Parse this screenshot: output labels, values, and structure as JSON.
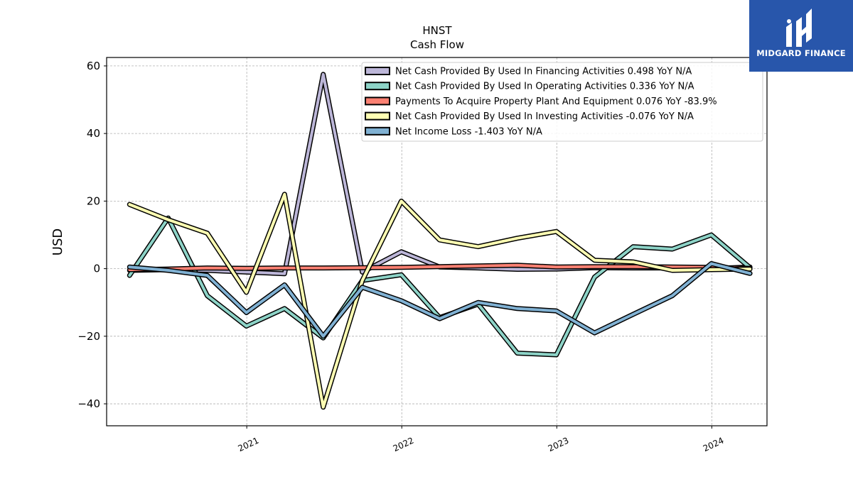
{
  "brand": {
    "name": "MIDGARD FINANCE",
    "color": "#2856ab"
  },
  "chart_data": {
    "type": "line",
    "title": "HNST",
    "subtitle": "Cash Flow",
    "xlabel": "",
    "ylabel": "USD",
    "ylim": [
      -46.5,
      62.5
    ],
    "yticks": [
      -40,
      -20,
      0,
      20,
      40,
      60
    ],
    "ytick_labels": [
      "−40",
      "−20",
      "0",
      "20",
      "40",
      "60"
    ],
    "xlim": [
      "2020-02-06",
      "2024-05-10"
    ],
    "xticks": [
      "2021-01-01",
      "2022-01-01",
      "2023-01-01",
      "2024-01-01"
    ],
    "xtick_labels": [
      "2021",
      "2022",
      "2023",
      "2024"
    ],
    "grid": true,
    "legend_position": "top-right",
    "x": [
      "2020-03-31",
      "2020-06-30",
      "2020-09-30",
      "2020-12-31",
      "2021-03-31",
      "2021-06-30",
      "2021-09-30",
      "2021-12-31",
      "2022-03-31",
      "2022-06-30",
      "2022-09-30",
      "2022-12-31",
      "2023-03-31",
      "2023-06-30",
      "2023-09-30",
      "2023-12-31",
      "2024-03-31"
    ],
    "series": [
      {
        "name": "Net Cash Provided By Used In Financing Activities  0.498 YoY N/A",
        "color": "#bcb6d8",
        "values": [
          -0.5,
          -0.3,
          -0.5,
          -1.0,
          -1.5,
          57.5,
          -1.0,
          5.0,
          0.5,
          0.2,
          -0.2,
          -0.1,
          0.3,
          0.2,
          0.2,
          0.0,
          0.5
        ]
      },
      {
        "name": "Net Cash Provided By Used In Operating Activities  0.336 YoY N/A",
        "color": "#8dd3c7",
        "values": [
          -2.0,
          15.0,
          -8.0,
          -17.0,
          -11.8,
          -20.5,
          -3.5,
          -1.8,
          -14.5,
          -10.5,
          -25.0,
          -25.5,
          -2.5,
          6.5,
          5.8,
          10.0,
          0.3
        ]
      },
      {
        "name": "Payments To Acquire Property Plant And Equipment  0.076 YoY -83.9%",
        "color": "#fb8072",
        "values": [
          -0.3,
          -0.1,
          0.2,
          0.1,
          0.2,
          0.2,
          0.3,
          0.4,
          0.6,
          0.8,
          1.0,
          0.5,
          0.6,
          0.6,
          0.5,
          0.4,
          0.1
        ]
      },
      {
        "name": "Net Cash Provided By Used In Investing Activities  -0.076 YoY N/A",
        "color": "#ffffb3",
        "values": [
          19.0,
          14.5,
          10.5,
          -7.0,
          22.0,
          -41.0,
          -3.5,
          20.0,
          8.5,
          6.5,
          9.0,
          11.0,
          2.5,
          2.0,
          -0.5,
          -0.3,
          -0.1
        ]
      },
      {
        "name": "Net Income Loss  -1.403 YoY N/A",
        "color": "#80b1d3",
        "values": [
          0.5,
          -0.5,
          -2.0,
          -13.0,
          -4.8,
          -20.0,
          -5.5,
          -9.5,
          -14.8,
          -10.0,
          -11.8,
          -12.5,
          -19.0,
          -13.5,
          -8.0,
          1.5,
          -1.4
        ]
      }
    ]
  }
}
